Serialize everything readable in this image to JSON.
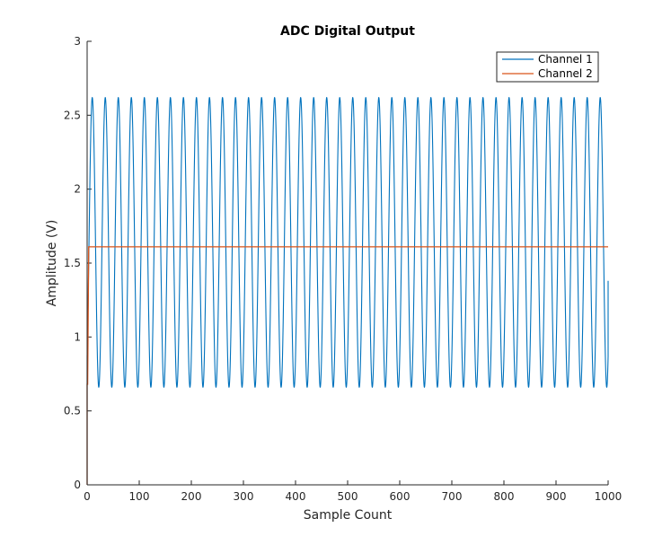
{
  "chart_data": {
    "type": "line",
    "title": "ADC Digital Output",
    "xlabel": "Sample Count",
    "ylabel": "Amplitude (V)",
    "xlim": [
      0,
      1000
    ],
    "ylim": [
      0,
      3
    ],
    "xticks": [
      "0",
      "100",
      "200",
      "300",
      "400",
      "500",
      "600",
      "700",
      "800",
      "900",
      "1000"
    ],
    "yticks": [
      "0",
      "0.5",
      "1",
      "1.5",
      "2",
      "2.5",
      "3"
    ],
    "grid": false,
    "legend_position": "top-right",
    "series": [
      {
        "name": "Channel 1",
        "color": "#0072BD",
        "shape": "sine",
        "x_range": [
          0,
          1000
        ],
        "start_value": 0,
        "initial_jump_value": 0.87,
        "center": 1.64,
        "amplitude": 0.98,
        "period_samples": 25,
        "end_value": 1.38
      },
      {
        "name": "Channel 2",
        "color": "#D95319",
        "shape": "step-flat",
        "x_range": [
          0,
          1000
        ],
        "start_value": 0,
        "rise_value": 0.68,
        "steady_value": 1.61
      }
    ]
  }
}
